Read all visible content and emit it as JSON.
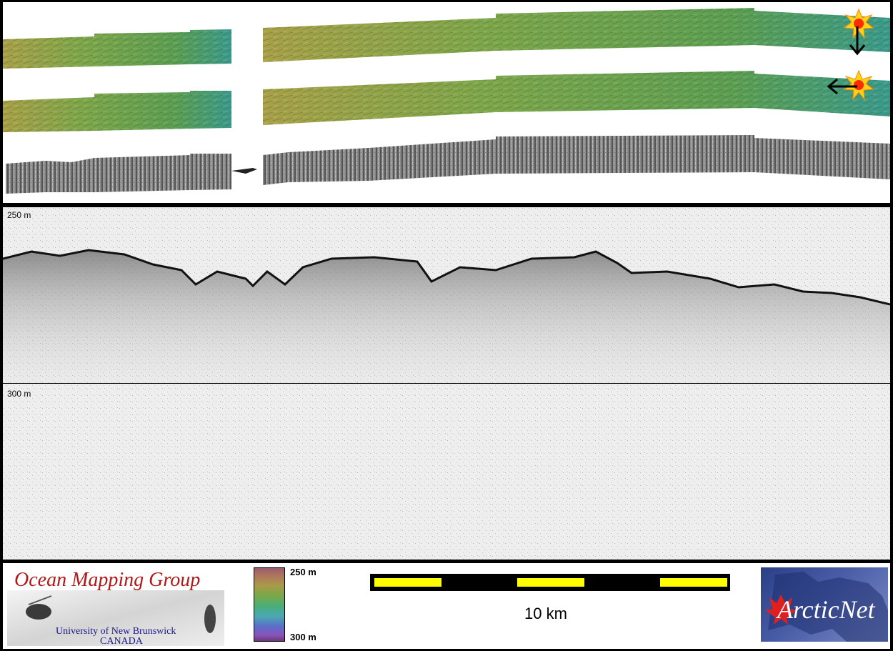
{
  "profile": {
    "depth_top_label": "250 m",
    "depth_bottom_label": "300 m"
  },
  "legend": {
    "logo_title": "Ocean Mapping Group",
    "logo_sub1": "University of New Brunswick",
    "logo_sub2": "CANADA",
    "colorbar_top": "250 m",
    "colorbar_bottom": "300 m",
    "scale_label": "10 km",
    "partner_logo": "ArcticNet"
  },
  "icons": {
    "sun_illumination": "sun-icon",
    "arrow_down": "arrow-down-icon",
    "arrow_left": "arrow-left-icon"
  },
  "colors": {
    "swath_green": "#6aa04a",
    "swath_teal": "#3a9a8c",
    "swath_olive": "#a8a048",
    "scale_yellow": "#ffff00",
    "omg_red": "#b01818",
    "arcticnet_blue": "#2a3f86"
  }
}
